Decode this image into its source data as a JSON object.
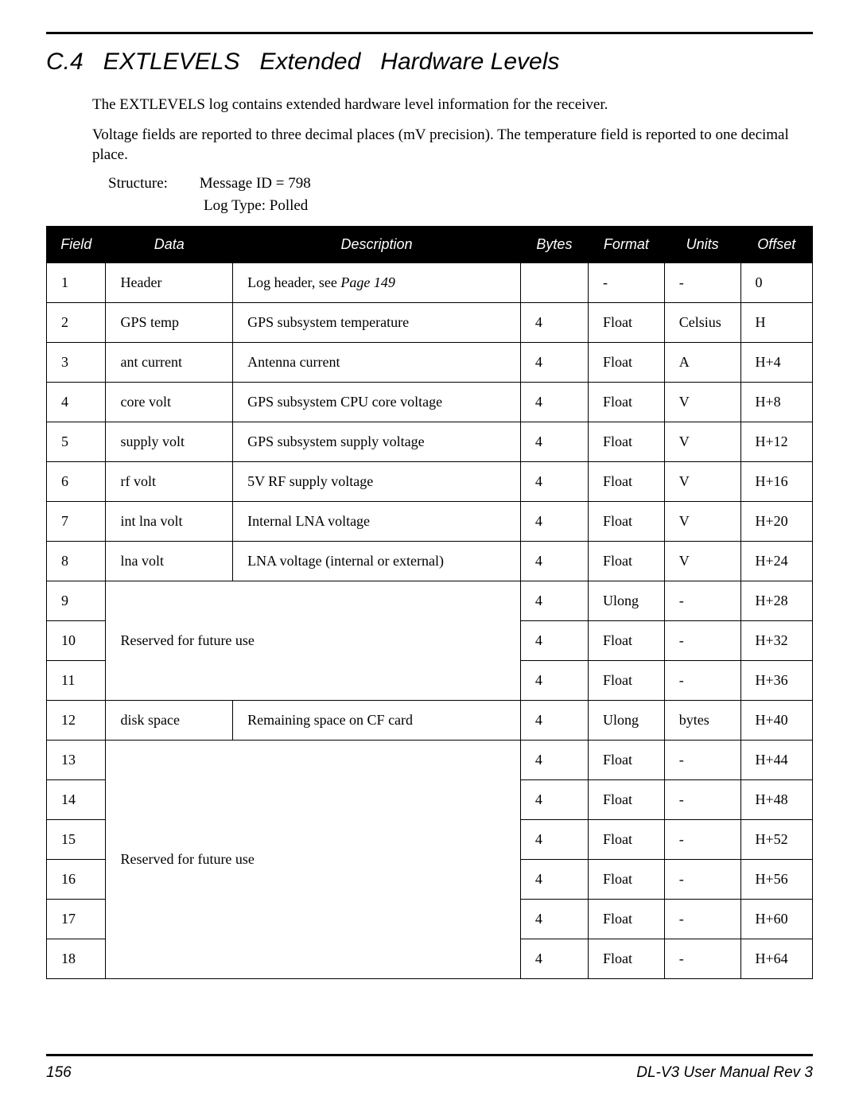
{
  "section": {
    "number": "C.4",
    "title_part1": "EXTLEVELS",
    "title_part2": "Extended",
    "title_part3": "Hardware Levels"
  },
  "intro": {
    "para1": "The EXTLEVELS log contains extended hardware level information for the receiver.",
    "para2": "Voltage fields are reported to three decimal places (mV precision). The temperature field is reported to one decimal place."
  },
  "structure": {
    "label": "Structure:",
    "msg_id": "Message ID = 798",
    "log_type": "Log Type: Polled"
  },
  "headers": {
    "field": "Field",
    "data": "Data",
    "description": "Description",
    "bytes": "Bytes",
    "format": "Format",
    "units": "Units",
    "offset": "Offset"
  },
  "rows": {
    "r1": {
      "field": "1",
      "data": "Header",
      "desc": "Log header, see ",
      "desc_ref": "Page 149",
      "bytes": "",
      "format": "-",
      "units": "-",
      "offset": "0"
    },
    "r2": {
      "field": "2",
      "data": "GPS temp",
      "desc": "GPS subsystem temperature",
      "bytes": "4",
      "format": "Float",
      "units": "Celsius",
      "offset": "H"
    },
    "r3": {
      "field": "3",
      "data": "ant current",
      "desc": "Antenna current",
      "bytes": "4",
      "format": "Float",
      "units": "A",
      "offset": "H+4"
    },
    "r4": {
      "field": "4",
      "data": "core volt",
      "desc": "GPS subsystem CPU core voltage",
      "bytes": "4",
      "format": "Float",
      "units": "V",
      "offset": "H+8"
    },
    "r5": {
      "field": "5",
      "data": "supply volt",
      "desc": "GPS subsystem supply voltage",
      "bytes": "4",
      "format": "Float",
      "units": "V",
      "offset": "H+12"
    },
    "r6": {
      "field": "6",
      "data": "rf volt",
      "desc": "5V RF supply voltage",
      "bytes": "4",
      "format": "Float",
      "units": "V",
      "offset": "H+16"
    },
    "r7": {
      "field": "7",
      "data": "int lna volt",
      "desc": "Internal LNA voltage",
      "bytes": "4",
      "format": "Float",
      "units": "V",
      "offset": "H+20"
    },
    "r8": {
      "field": "8",
      "data": "lna volt",
      "desc": "LNA voltage (internal or external)",
      "bytes": "4",
      "format": "Float",
      "units": "V",
      "offset": "H+24"
    },
    "r9": {
      "field": "9",
      "bytes": "4",
      "format": "Ulong",
      "units": "-",
      "offset": "H+28"
    },
    "r10": {
      "field": "10",
      "bytes": "4",
      "format": "Float",
      "units": "-",
      "offset": "H+32"
    },
    "r11": {
      "field": "11",
      "bytes": "4",
      "format": "Float",
      "units": "-",
      "offset": "H+36"
    },
    "reserved1": "Reserved for future use",
    "r12": {
      "field": "12",
      "data": "disk space",
      "desc": "Remaining space on CF card",
      "bytes": "4",
      "format": "Ulong",
      "units": "bytes",
      "offset": "H+40"
    },
    "r13": {
      "field": "13",
      "bytes": "4",
      "format": "Float",
      "units": "-",
      "offset": "H+44"
    },
    "r14": {
      "field": "14",
      "bytes": "4",
      "format": "Float",
      "units": "-",
      "offset": "H+48"
    },
    "r15": {
      "field": "15",
      "bytes": "4",
      "format": "Float",
      "units": "-",
      "offset": "H+52"
    },
    "r16": {
      "field": "16",
      "bytes": "4",
      "format": "Float",
      "units": "-",
      "offset": "H+56"
    },
    "r17": {
      "field": "17",
      "bytes": "4",
      "format": "Float",
      "units": "-",
      "offset": "H+60"
    },
    "r18": {
      "field": "18",
      "bytes": "4",
      "format": "Float",
      "units": "-",
      "offset": "H+64"
    },
    "reserved2": "Reserved for future use"
  },
  "footer": {
    "page": "156",
    "doc": "DL-V3 User Manual Rev 3"
  }
}
